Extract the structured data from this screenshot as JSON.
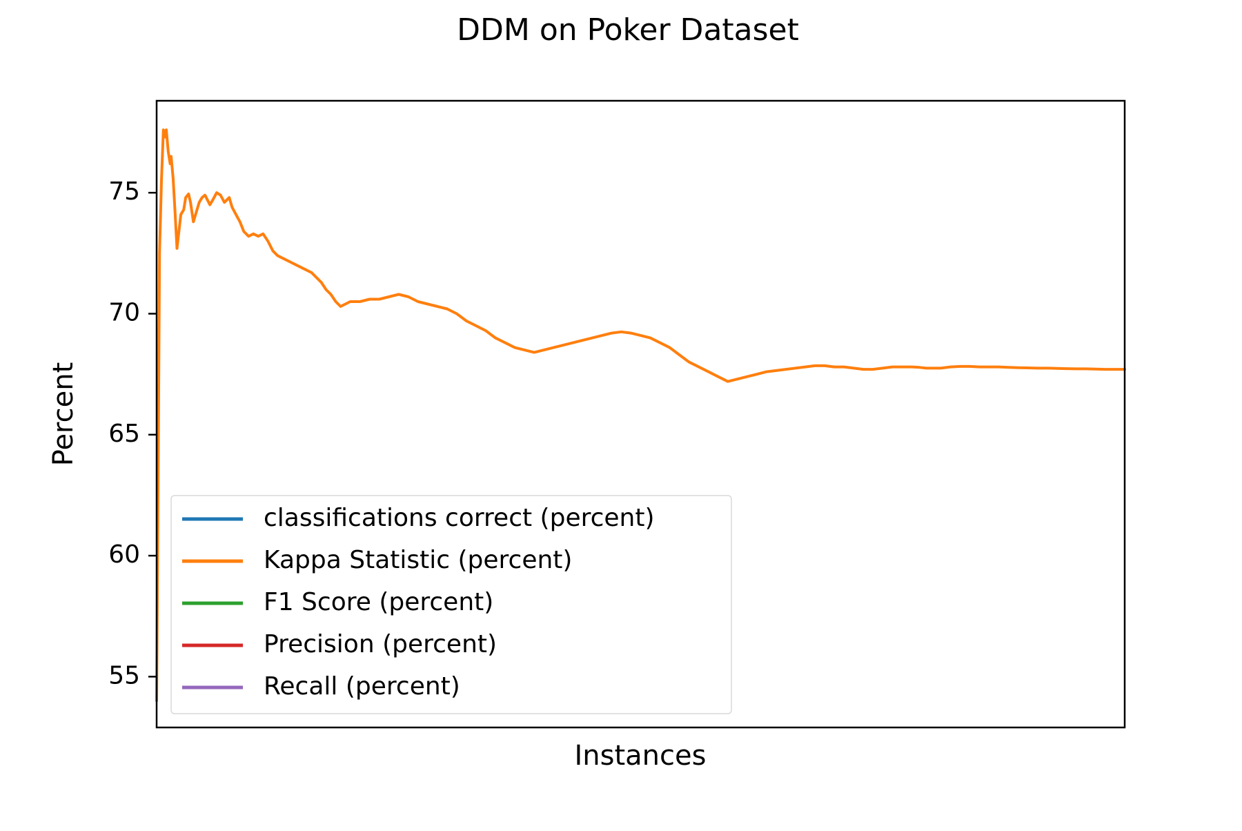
{
  "chart_data": {
    "type": "line",
    "title": "DDM on Poker Dataset",
    "xlabel": "Instances",
    "ylabel": "Percent",
    "ylim": [
      52.9,
      78.8
    ],
    "xlim": [
      0,
      1000
    ],
    "y_ticks": [
      55,
      60,
      65,
      70,
      75
    ],
    "x_ticks": [],
    "grid": false,
    "legend_position": "lower-left",
    "series": [
      {
        "name": "classifications correct (percent)",
        "color": "#1f77b4",
        "x": [],
        "values": []
      },
      {
        "name": "Kappa Statistic (percent)",
        "color": "#ff7f0e",
        "x": [
          0,
          2,
          3,
          5,
          7,
          9,
          10,
          12,
          14,
          15,
          17,
          19,
          21,
          23,
          25,
          28,
          30,
          33,
          35,
          38,
          41,
          44,
          47,
          50,
          55,
          58,
          62,
          66,
          70,
          75,
          78,
          82,
          86,
          90,
          95,
          100,
          105,
          110,
          115,
          120,
          125,
          130,
          135,
          140,
          145,
          150,
          155,
          160,
          165,
          170,
          175,
          180,
          185,
          190,
          195,
          200,
          210,
          220,
          230,
          240,
          250,
          260,
          265,
          270,
          280,
          290,
          300,
          310,
          320,
          330,
          340,
          350,
          360,
          370,
          380,
          390,
          400,
          410,
          420,
          430,
          440,
          450,
          460,
          470,
          480,
          490,
          500,
          510,
          520,
          530,
          540,
          550,
          560,
          570,
          580,
          590,
          600,
          610,
          620,
          630,
          640,
          650,
          660,
          670,
          680,
          690,
          700,
          710,
          720,
          730,
          740,
          750,
          760,
          770,
          780,
          788,
          795,
          800,
          810,
          820,
          830,
          840,
          850,
          860,
          870,
          880,
          890,
          900,
          910,
          920,
          930,
          940,
          950,
          960,
          970,
          980,
          990,
          1000
        ],
        "values": [
          54,
          66,
          72.5,
          75.5,
          77.6,
          77.3,
          77.6,
          76.7,
          76.2,
          76.5,
          75.6,
          74.2,
          72.7,
          73.4,
          74.1,
          74.3,
          74.8,
          74.95,
          74.6,
          73.8,
          74.2,
          74.6,
          74.8,
          74.9,
          74.5,
          74.7,
          75.0,
          74.9,
          74.6,
          74.8,
          74.4,
          74.1,
          73.8,
          73.4,
          73.2,
          73.3,
          73.2,
          73.3,
          73.0,
          72.6,
          72.4,
          72.3,
          72.2,
          72.1,
          72.0,
          71.9,
          71.8,
          71.7,
          71.5,
          71.3,
          71.0,
          70.8,
          70.5,
          70.3,
          70.4,
          70.5,
          70.5,
          70.6,
          70.6,
          70.7,
          70.8,
          70.7,
          70.6,
          70.5,
          70.4,
          70.3,
          70.2,
          70.0,
          69.7,
          69.5,
          69.3,
          69.0,
          68.8,
          68.6,
          68.5,
          68.4,
          68.5,
          68.6,
          68.7,
          68.8,
          68.9,
          69.0,
          69.1,
          69.2,
          69.25,
          69.2,
          69.1,
          69.0,
          68.8,
          68.6,
          68.3,
          68.0,
          67.8,
          67.6,
          67.4,
          67.2,
          67.3,
          67.4,
          67.5,
          67.6,
          67.65,
          67.7,
          67.75,
          67.8,
          67.85,
          67.85,
          67.8,
          67.8,
          67.75,
          67.7,
          67.7,
          67.75,
          67.8,
          67.8,
          67.8,
          67.78,
          67.75,
          67.75,
          67.75,
          67.8,
          67.82,
          67.82,
          67.8,
          67.8,
          67.8,
          67.78,
          67.77,
          67.76,
          67.75,
          67.75,
          67.74,
          67.73,
          67.72,
          67.72,
          67.71,
          67.7,
          67.7,
          67.7
        ]
      },
      {
        "name": "F1 Score (percent)",
        "color": "#2ca02c",
        "x": [],
        "values": []
      },
      {
        "name": "Precision (percent)",
        "color": "#d62728",
        "x": [],
        "values": []
      },
      {
        "name": "Recall (percent)",
        "color": "#9467bd",
        "x": [],
        "values": []
      }
    ]
  }
}
